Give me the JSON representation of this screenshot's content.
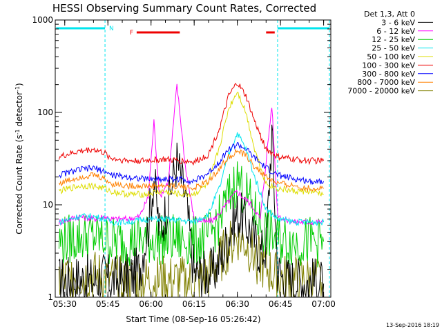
{
  "chart_data": {
    "type": "line",
    "title": "HESSI Observing Summary Count Rates, Corrected",
    "xlabel": "Start Time (08-Sep-16 05:26:42)",
    "ylabel_main": "Corrected Count Rate (s",
    "ylabel_sup1": "-1",
    "ylabel_mid": " detector",
    "ylabel_sup2": "-1",
    "ylabel_end": ")",
    "yscale": "log",
    "ylim": [
      1,
      1000
    ],
    "xlim": [
      "05:26:42",
      "07:02:30"
    ],
    "x_ticks": [
      "05:30",
      "05:45",
      "06:00",
      "06:15",
      "06:30",
      "06:45",
      "07:00"
    ],
    "y_ticks": [
      "1",
      "10",
      "100",
      "1000"
    ],
    "legend_title": "Det 1,3, Att 0",
    "legend_position": "outside-right",
    "timestamp": "13-Sep-2016 18:19",
    "flags": [
      {
        "label": "N",
        "color": "#00e5ee",
        "segments": [
          [
            "05:27",
            "05:44"
          ],
          [
            "06:44",
            "07:02"
          ]
        ]
      },
      {
        "label": "F",
        "color": "#ee0000",
        "segments": [
          [
            "05:55",
            "06:10"
          ],
          [
            "06:40",
            "06:43"
          ]
        ]
      }
    ],
    "series": [
      {
        "name": "3 - 6 keV",
        "color": "#000000",
        "x": [
          "05:28",
          "05:35",
          "05:40",
          "05:44",
          "05:46",
          "05:52",
          "05:56",
          "05:59",
          "06:01",
          "06:03",
          "06:06",
          "06:09",
          "06:12",
          "06:15",
          "06:19",
          "06:22",
          "06:25",
          "06:28",
          "06:30",
          "06:32",
          "06:35",
          "06:38",
          "06:40",
          "06:42",
          "06:44",
          "06:46",
          "06:50",
          "06:55",
          "07:00"
        ],
        "values": [
          1.5,
          1.6,
          1.5,
          1.7,
          1.5,
          1.6,
          2.0,
          6.0,
          20,
          5.0,
          11,
          30,
          12,
          1.8,
          1.8,
          1.9,
          3.0,
          6.0,
          8.0,
          7.0,
          5.0,
          3.0,
          3.5,
          60,
          2.0,
          1.6,
          1.5,
          1.5,
          1.4
        ]
      },
      {
        "name": "6 - 12 keV",
        "color": "#ff00ff",
        "x": [
          "05:28",
          "05:35",
          "05:40",
          "05:44",
          "05:46",
          "05:52",
          "05:56",
          "05:59",
          "06:01",
          "06:03",
          "06:06",
          "06:09",
          "06:12",
          "06:15",
          "06:19",
          "06:22",
          "06:25",
          "06:28",
          "06:30",
          "06:32",
          "06:35",
          "06:38",
          "06:40",
          "06:42",
          "06:44",
          "06:46",
          "06:50",
          "06:55",
          "07:00"
        ],
        "values": [
          6.5,
          7.5,
          7.0,
          7.5,
          7.0,
          7.0,
          7.5,
          12,
          80,
          12,
          18,
          200,
          25,
          7.0,
          6.5,
          7.0,
          9.0,
          12,
          14,
          12,
          10,
          7.0,
          30,
          120,
          8.0,
          7.0,
          6.5,
          6.5,
          6.5
        ]
      },
      {
        "name": "12 - 25 keV",
        "color": "#00cc00",
        "x": [
          "05:28",
          "05:35",
          "05:40",
          "05:44",
          "05:46",
          "05:52",
          "05:58",
          "06:04",
          "06:10",
          "06:15",
          "06:20",
          "06:24",
          "06:27",
          "06:30",
          "06:33",
          "06:36",
          "06:40",
          "06:44",
          "06:50",
          "06:55",
          "07:00"
        ],
        "values": [
          4.0,
          4.5,
          4.5,
          4.3,
          4.0,
          4.0,
          4.2,
          4.2,
          4.2,
          4.0,
          4.5,
          7.0,
          12,
          19,
          13,
          8.0,
          5.0,
          4.2,
          4.0,
          4.0,
          4.0
        ]
      },
      {
        "name": "25 - 50 keV",
        "color": "#00e5ee",
        "x": [
          "05:28",
          "05:35",
          "05:40",
          "05:44",
          "05:46",
          "05:52",
          "05:58",
          "06:04",
          "06:10",
          "06:15",
          "06:20",
          "06:24",
          "06:27",
          "06:30",
          "06:33",
          "06:36",
          "06:40",
          "06:44",
          "06:50",
          "06:55",
          "07:00"
        ],
        "values": [
          6.5,
          7.5,
          7.5,
          7.0,
          6.5,
          6.5,
          7.0,
          7.0,
          6.8,
          6.5,
          8.0,
          16,
          35,
          60,
          40,
          20,
          9.0,
          7.0,
          6.5,
          6.5,
          6.5
        ]
      },
      {
        "name": "50 - 100 keV",
        "color": "#dddd00",
        "x": [
          "05:28",
          "05:35",
          "05:40",
          "05:44",
          "05:46",
          "05:52",
          "05:58",
          "06:04",
          "06:10",
          "06:15",
          "06:20",
          "06:24",
          "06:27",
          "06:30",
          "06:33",
          "06:36",
          "06:40",
          "06:44",
          "06:50",
          "06:55",
          "07:00"
        ],
        "values": [
          14,
          16,
          16,
          15,
          14,
          13,
          13,
          14,
          13,
          13,
          17,
          45,
          110,
          170,
          100,
          40,
          17,
          15,
          14,
          14,
          13
        ]
      },
      {
        "name": "100 - 300 keV",
        "color": "#ee0000",
        "x": [
          "05:28",
          "05:35",
          "05:40",
          "05:44",
          "05:46",
          "05:52",
          "05:58",
          "06:04",
          "06:10",
          "06:15",
          "06:20",
          "06:24",
          "06:27",
          "06:30",
          "06:33",
          "06:36",
          "06:40",
          "06:44",
          "06:50",
          "06:55",
          "07:00"
        ],
        "values": [
          33,
          38,
          40,
          36,
          32,
          30,
          30,
          31,
          30,
          29,
          35,
          70,
          150,
          210,
          150,
          80,
          40,
          33,
          31,
          30,
          30
        ]
      },
      {
        "name": "300 - 800 keV",
        "color": "#0000ff",
        "x": [
          "05:28",
          "05:35",
          "05:40",
          "05:44",
          "05:46",
          "05:52",
          "05:58",
          "06:04",
          "06:10",
          "06:15",
          "06:20",
          "06:24",
          "06:27",
          "06:30",
          "06:33",
          "06:36",
          "06:40",
          "06:44",
          "06:50",
          "06:55",
          "07:00"
        ],
        "values": [
          21,
          24,
          25,
          23,
          21,
          20,
          19,
          19,
          19,
          18,
          22,
          30,
          40,
          45,
          40,
          32,
          25,
          21,
          19,
          18,
          18
        ]
      },
      {
        "name": "800 - 7000 keV",
        "color": "#ff8000",
        "x": [
          "05:28",
          "05:35",
          "05:40",
          "05:44",
          "05:46",
          "05:52",
          "05:58",
          "06:04",
          "06:10",
          "06:15",
          "06:20",
          "06:24",
          "06:27",
          "06:30",
          "06:33",
          "06:36",
          "06:40",
          "06:44",
          "06:50",
          "06:55",
          "07:00"
        ],
        "values": [
          17,
          20,
          21,
          19,
          17,
          16,
          16,
          16,
          16,
          15,
          18,
          25,
          33,
          38,
          34,
          26,
          20,
          17,
          16,
          15,
          15
        ]
      },
      {
        "name": "7000 - 20000 keV",
        "color": "#808000",
        "x": [
          "05:28",
          "05:35",
          "05:40",
          "05:44",
          "05:46",
          "05:52",
          "05:58",
          "06:04",
          "06:10",
          "06:15",
          "06:20",
          "06:24",
          "06:27",
          "06:30",
          "06:33",
          "06:36",
          "06:40",
          "06:44",
          "06:50",
          "06:55",
          "07:00"
        ],
        "values": [
          1.5,
          1.7,
          1.7,
          1.6,
          1.5,
          1.5,
          1.5,
          1.5,
          1.5,
          1.4,
          1.7,
          2.5,
          3.5,
          4.5,
          3.8,
          2.8,
          2.0,
          1.6,
          1.5,
          1.5,
          1.4
        ]
      }
    ]
  }
}
